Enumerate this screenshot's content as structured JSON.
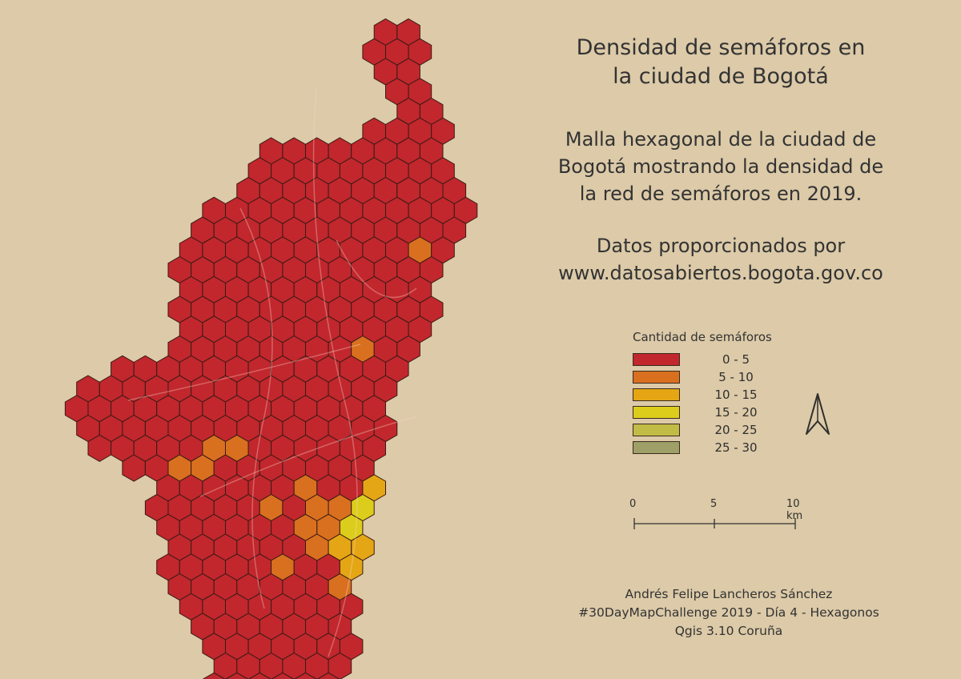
{
  "title": {
    "line1": "Densidad de semáforos en",
    "line2": "la ciudad de Bogotá"
  },
  "description": {
    "line1": "Malla hexagonal de la ciudad de",
    "line2": "Bogotá mostrando la densidad de",
    "line3": "la red de semáforos en 2019."
  },
  "source": {
    "line1": "Datos proporcionados por",
    "line2": "www.datosabiertos.bogota.gov.co"
  },
  "legend": {
    "title": "Cantidad de semáforos",
    "classes": [
      {
        "label": "0 - 5",
        "color": "#c1272d"
      },
      {
        "label": "5 - 10",
        "color": "#d9701f"
      },
      {
        "label": "10 - 15",
        "color": "#e4a614"
      },
      {
        "label": "15 - 20",
        "color": "#dccd1c"
      },
      {
        "label": "20 - 25",
        "color": "#c0bc46"
      },
      {
        "label": "25 - 30",
        "color": "#9ea067"
      }
    ]
  },
  "scale_bar": {
    "ticks": [
      "0",
      "5",
      "10 km"
    ]
  },
  "north_arrow": {
    "icon": "north-arrow-icon"
  },
  "credits": {
    "line1": "Andrés Felipe Lancheros Sánchez",
    "line2": "#30DayMapChallenge 2019 - Día 4 - Hexagonos",
    "line3": "Qgis 3.10 Coruña"
  },
  "colors": {
    "background": "#dccaa8",
    "hex_stroke": "#3a1a14"
  }
}
